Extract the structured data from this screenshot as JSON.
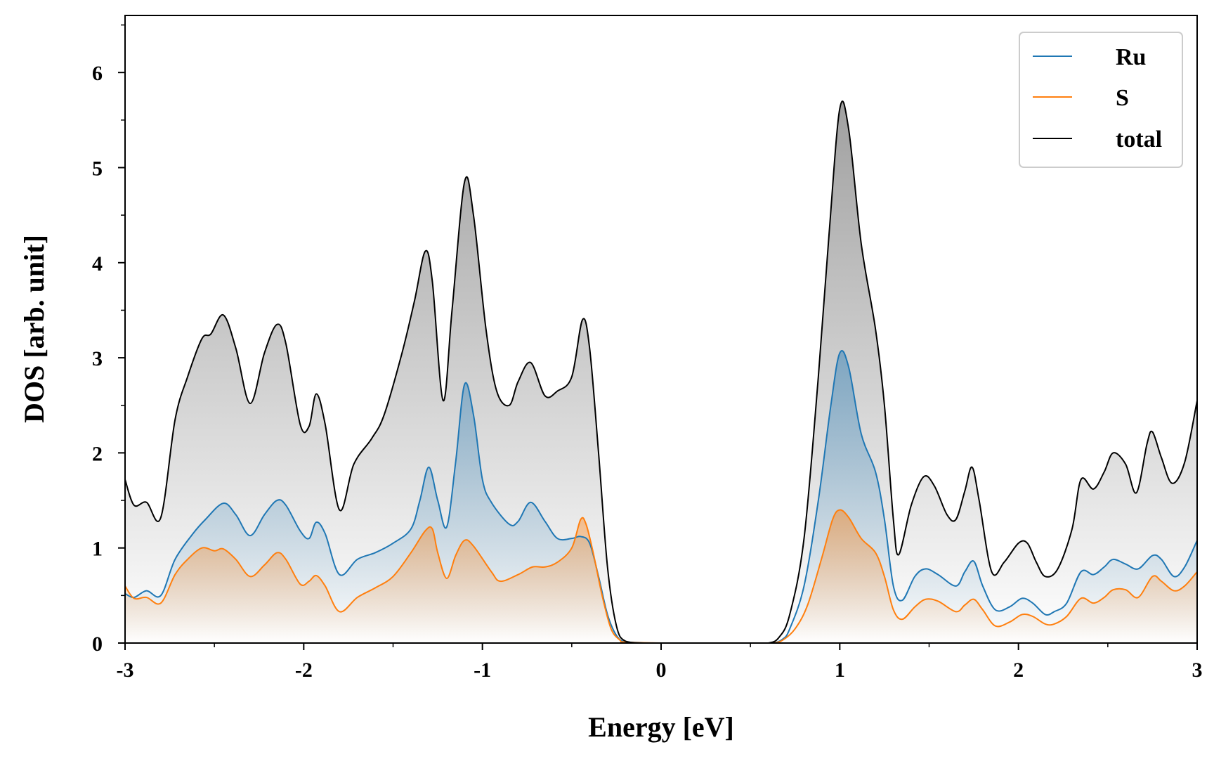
{
  "chart_data": {
    "type": "area",
    "xlabel": "Energy [eV]",
    "ylabel": "DOS [arb. unit]",
    "xlim": [
      -3,
      3
    ],
    "ylim": [
      0,
      6.6
    ],
    "xticks": [
      -3,
      -2,
      -1,
      0,
      1,
      2,
      3
    ],
    "yticks": [
      0,
      1,
      2,
      3,
      4,
      5,
      6
    ],
    "grid": false,
    "legend_position": "top-right",
    "series": [
      {
        "name": "Ru",
        "color": "#1f77b4",
        "points": [
          [
            -3.0,
            0.52
          ],
          [
            -2.95,
            0.48
          ],
          [
            -2.88,
            0.55
          ],
          [
            -2.8,
            0.5
          ],
          [
            -2.72,
            0.88
          ],
          [
            -2.62,
            1.15
          ],
          [
            -2.55,
            1.3
          ],
          [
            -2.45,
            1.47
          ],
          [
            -2.38,
            1.35
          ],
          [
            -2.3,
            1.13
          ],
          [
            -2.22,
            1.35
          ],
          [
            -2.15,
            1.5
          ],
          [
            -2.1,
            1.45
          ],
          [
            -2.02,
            1.18
          ],
          [
            -1.97,
            1.1
          ],
          [
            -1.93,
            1.27
          ],
          [
            -1.88,
            1.15
          ],
          [
            -1.8,
            0.72
          ],
          [
            -1.7,
            0.88
          ],
          [
            -1.6,
            0.95
          ],
          [
            -1.5,
            1.05
          ],
          [
            -1.4,
            1.2
          ],
          [
            -1.35,
            1.5
          ],
          [
            -1.3,
            1.85
          ],
          [
            -1.25,
            1.5
          ],
          [
            -1.2,
            1.22
          ],
          [
            -1.15,
            1.9
          ],
          [
            -1.1,
            2.72
          ],
          [
            -1.05,
            2.4
          ],
          [
            -1.0,
            1.72
          ],
          [
            -0.95,
            1.48
          ],
          [
            -0.85,
            1.25
          ],
          [
            -0.8,
            1.28
          ],
          [
            -0.73,
            1.48
          ],
          [
            -0.65,
            1.28
          ],
          [
            -0.58,
            1.1
          ],
          [
            -0.5,
            1.1
          ],
          [
            -0.45,
            1.12
          ],
          [
            -0.4,
            1.05
          ],
          [
            -0.35,
            0.7
          ],
          [
            -0.3,
            0.3
          ],
          [
            -0.25,
            0.08
          ],
          [
            -0.2,
            0.01
          ],
          [
            -0.1,
            0.0
          ],
          [
            0.0,
            0.0
          ],
          [
            0.5,
            0.0
          ],
          [
            0.62,
            0.0
          ],
          [
            0.68,
            0.04
          ],
          [
            0.72,
            0.15
          ],
          [
            0.8,
            0.6
          ],
          [
            0.88,
            1.5
          ],
          [
            0.95,
            2.5
          ],
          [
            1.0,
            3.05
          ],
          [
            1.05,
            2.9
          ],
          [
            1.12,
            2.2
          ],
          [
            1.2,
            1.8
          ],
          [
            1.25,
            1.3
          ],
          [
            1.3,
            0.6
          ],
          [
            1.35,
            0.45
          ],
          [
            1.42,
            0.7
          ],
          [
            1.48,
            0.78
          ],
          [
            1.55,
            0.72
          ],
          [
            1.65,
            0.6
          ],
          [
            1.7,
            0.75
          ],
          [
            1.75,
            0.86
          ],
          [
            1.8,
            0.6
          ],
          [
            1.87,
            0.35
          ],
          [
            1.95,
            0.38
          ],
          [
            2.02,
            0.47
          ],
          [
            2.08,
            0.42
          ],
          [
            2.15,
            0.3
          ],
          [
            2.2,
            0.33
          ],
          [
            2.27,
            0.42
          ],
          [
            2.35,
            0.75
          ],
          [
            2.42,
            0.72
          ],
          [
            2.48,
            0.8
          ],
          [
            2.53,
            0.88
          ],
          [
            2.6,
            0.83
          ],
          [
            2.67,
            0.78
          ],
          [
            2.75,
            0.92
          ],
          [
            2.8,
            0.88
          ],
          [
            2.87,
            0.7
          ],
          [
            2.93,
            0.8
          ],
          [
            3.0,
            1.08
          ]
        ]
      },
      {
        "name": "S",
        "color": "#ff7f0e",
        "points": [
          [
            -3.0,
            0.6
          ],
          [
            -2.95,
            0.47
          ],
          [
            -2.88,
            0.48
          ],
          [
            -2.8,
            0.42
          ],
          [
            -2.72,
            0.72
          ],
          [
            -2.65,
            0.88
          ],
          [
            -2.57,
            1.0
          ],
          [
            -2.5,
            0.97
          ],
          [
            -2.45,
            0.99
          ],
          [
            -2.38,
            0.88
          ],
          [
            -2.3,
            0.7
          ],
          [
            -2.22,
            0.82
          ],
          [
            -2.15,
            0.95
          ],
          [
            -2.1,
            0.88
          ],
          [
            -2.02,
            0.62
          ],
          [
            -1.97,
            0.65
          ],
          [
            -1.93,
            0.71
          ],
          [
            -1.88,
            0.6
          ],
          [
            -1.8,
            0.33
          ],
          [
            -1.7,
            0.48
          ],
          [
            -1.6,
            0.58
          ],
          [
            -1.5,
            0.7
          ],
          [
            -1.4,
            0.95
          ],
          [
            -1.32,
            1.18
          ],
          [
            -1.28,
            1.2
          ],
          [
            -1.25,
            0.95
          ],
          [
            -1.2,
            0.68
          ],
          [
            -1.15,
            0.92
          ],
          [
            -1.1,
            1.08
          ],
          [
            -1.05,
            1.02
          ],
          [
            -0.95,
            0.75
          ],
          [
            -0.9,
            0.65
          ],
          [
            -0.8,
            0.72
          ],
          [
            -0.72,
            0.8
          ],
          [
            -0.65,
            0.8
          ],
          [
            -0.58,
            0.85
          ],
          [
            -0.5,
            1.0
          ],
          [
            -0.45,
            1.3
          ],
          [
            -0.42,
            1.25
          ],
          [
            -0.38,
            0.95
          ],
          [
            -0.33,
            0.5
          ],
          [
            -0.28,
            0.15
          ],
          [
            -0.23,
            0.03
          ],
          [
            -0.2,
            0.01
          ],
          [
            0.0,
            0.0
          ],
          [
            0.5,
            0.0
          ],
          [
            0.62,
            0.0
          ],
          [
            0.68,
            0.03
          ],
          [
            0.75,
            0.15
          ],
          [
            0.82,
            0.4
          ],
          [
            0.9,
            0.9
          ],
          [
            0.96,
            1.3
          ],
          [
            1.0,
            1.4
          ],
          [
            1.05,
            1.32
          ],
          [
            1.12,
            1.1
          ],
          [
            1.2,
            0.95
          ],
          [
            1.25,
            0.7
          ],
          [
            1.3,
            0.35
          ],
          [
            1.35,
            0.25
          ],
          [
            1.42,
            0.38
          ],
          [
            1.48,
            0.46
          ],
          [
            1.55,
            0.44
          ],
          [
            1.65,
            0.33
          ],
          [
            1.7,
            0.4
          ],
          [
            1.75,
            0.46
          ],
          [
            1.8,
            0.35
          ],
          [
            1.87,
            0.18
          ],
          [
            1.95,
            0.22
          ],
          [
            2.02,
            0.3
          ],
          [
            2.08,
            0.28
          ],
          [
            2.15,
            0.2
          ],
          [
            2.2,
            0.2
          ],
          [
            2.27,
            0.28
          ],
          [
            2.35,
            0.47
          ],
          [
            2.42,
            0.42
          ],
          [
            2.48,
            0.48
          ],
          [
            2.53,
            0.56
          ],
          [
            2.6,
            0.56
          ],
          [
            2.67,
            0.48
          ],
          [
            2.75,
            0.7
          ],
          [
            2.8,
            0.65
          ],
          [
            2.87,
            0.55
          ],
          [
            2.93,
            0.6
          ],
          [
            3.0,
            0.75
          ]
        ]
      },
      {
        "name": "total",
        "color": "#000000",
        "points": [
          [
            -3.0,
            1.72
          ],
          [
            -2.95,
            1.45
          ],
          [
            -2.88,
            1.48
          ],
          [
            -2.8,
            1.32
          ],
          [
            -2.72,
            2.35
          ],
          [
            -2.65,
            2.8
          ],
          [
            -2.57,
            3.2
          ],
          [
            -2.52,
            3.25
          ],
          [
            -2.45,
            3.45
          ],
          [
            -2.38,
            3.1
          ],
          [
            -2.3,
            2.52
          ],
          [
            -2.22,
            3.05
          ],
          [
            -2.15,
            3.35
          ],
          [
            -2.1,
            3.15
          ],
          [
            -2.02,
            2.3
          ],
          [
            -1.97,
            2.28
          ],
          [
            -1.93,
            2.62
          ],
          [
            -1.88,
            2.3
          ],
          [
            -1.8,
            1.4
          ],
          [
            -1.72,
            1.88
          ],
          [
            -1.62,
            2.15
          ],
          [
            -1.55,
            2.4
          ],
          [
            -1.45,
            3.05
          ],
          [
            -1.38,
            3.6
          ],
          [
            -1.32,
            4.12
          ],
          [
            -1.28,
            3.8
          ],
          [
            -1.22,
            2.55
          ],
          [
            -1.17,
            3.5
          ],
          [
            -1.1,
            4.85
          ],
          [
            -1.05,
            4.5
          ],
          [
            -0.98,
            3.3
          ],
          [
            -0.92,
            2.65
          ],
          [
            -0.85,
            2.5
          ],
          [
            -0.8,
            2.75
          ],
          [
            -0.73,
            2.95
          ],
          [
            -0.65,
            2.6
          ],
          [
            -0.58,
            2.65
          ],
          [
            -0.5,
            2.8
          ],
          [
            -0.44,
            3.4
          ],
          [
            -0.4,
            3.1
          ],
          [
            -0.35,
            2.0
          ],
          [
            -0.3,
            0.8
          ],
          [
            -0.25,
            0.18
          ],
          [
            -0.2,
            0.02
          ],
          [
            -0.1,
            0.0
          ],
          [
            0.0,
            0.0
          ],
          [
            0.5,
            0.0
          ],
          [
            0.6,
            0.0
          ],
          [
            0.66,
            0.06
          ],
          [
            0.72,
            0.3
          ],
          [
            0.8,
            1.1
          ],
          [
            0.88,
            2.8
          ],
          [
            0.94,
            4.3
          ],
          [
            1.0,
            5.62
          ],
          [
            1.05,
            5.4
          ],
          [
            1.12,
            4.2
          ],
          [
            1.2,
            3.3
          ],
          [
            1.25,
            2.5
          ],
          [
            1.3,
            1.3
          ],
          [
            1.33,
            0.93
          ],
          [
            1.4,
            1.45
          ],
          [
            1.47,
            1.75
          ],
          [
            1.53,
            1.65
          ],
          [
            1.6,
            1.35
          ],
          [
            1.65,
            1.3
          ],
          [
            1.7,
            1.6
          ],
          [
            1.74,
            1.85
          ],
          [
            1.78,
            1.5
          ],
          [
            1.85,
            0.75
          ],
          [
            1.92,
            0.85
          ],
          [
            2.0,
            1.05
          ],
          [
            2.05,
            1.05
          ],
          [
            2.1,
            0.85
          ],
          [
            2.15,
            0.7
          ],
          [
            2.22,
            0.78
          ],
          [
            2.3,
            1.2
          ],
          [
            2.35,
            1.72
          ],
          [
            2.42,
            1.62
          ],
          [
            2.48,
            1.8
          ],
          [
            2.53,
            2.0
          ],
          [
            2.6,
            1.88
          ],
          [
            2.66,
            1.58
          ],
          [
            2.72,
            2.1
          ],
          [
            2.75,
            2.22
          ],
          [
            2.8,
            1.95
          ],
          [
            2.86,
            1.68
          ],
          [
            2.93,
            1.9
          ],
          [
            3.0,
            2.55
          ]
        ]
      }
    ]
  }
}
